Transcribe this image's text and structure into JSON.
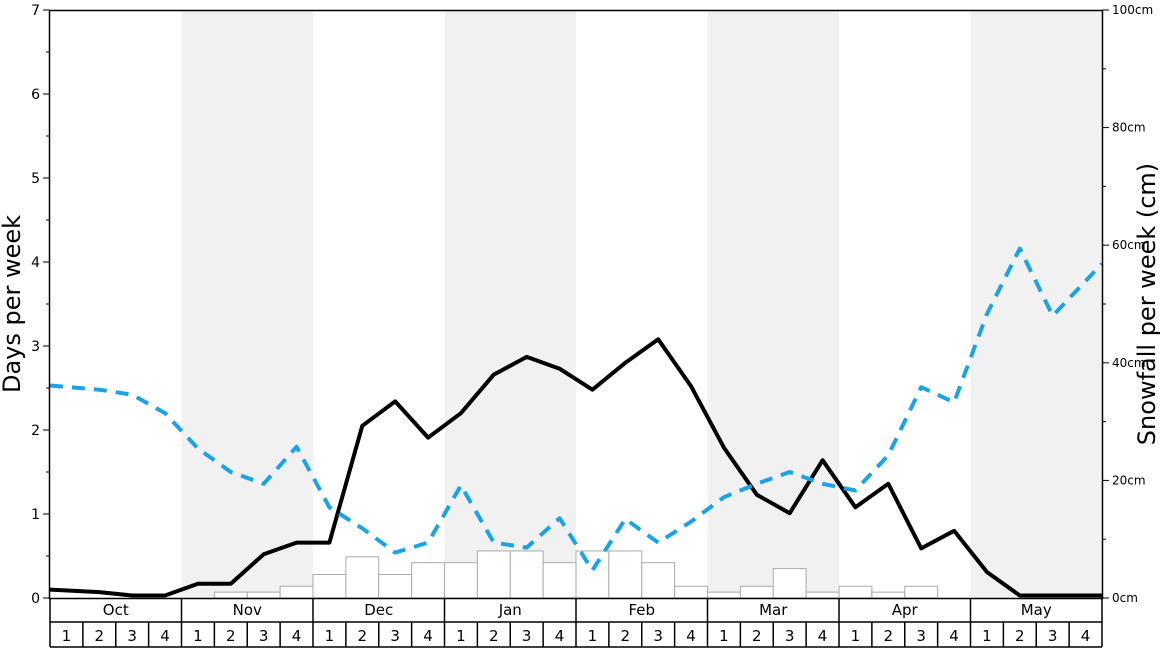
{
  "chart_data": {
    "type": "bar+line",
    "y_left_label": "Days per week",
    "y_right_label": "Snowfall per week (cm)",
    "y_left_ticks": [
      "0",
      "1",
      "2",
      "3",
      "4",
      "5",
      "6",
      "7"
    ],
    "y_right_ticks": [
      "0cm",
      "20cm",
      "40cm",
      "60cm",
      "80cm",
      "100cm"
    ],
    "y_left_range": [
      0,
      7
    ],
    "y_right_range": [
      0,
      100
    ],
    "months": [
      "Oct",
      "Nov",
      "Dec",
      "Jan",
      "Feb",
      "Mar",
      "Apr",
      "May"
    ],
    "week_labels": [
      "1",
      "2",
      "3",
      "4"
    ],
    "shaded_months": [
      "Nov",
      "Jan",
      "Mar",
      "May"
    ],
    "series": [
      {
        "style": "bars-outline",
        "axis": "right",
        "color": "#aaaaaa",
        "values": [
          0,
          0,
          0,
          0,
          0,
          1,
          1,
          2,
          4,
          7,
          4,
          6,
          6,
          8,
          8,
          6,
          8,
          8,
          6,
          2,
          1,
          2,
          5,
          1,
          2,
          1,
          2,
          0,
          0,
          0,
          0,
          0
        ]
      },
      {
        "style": "solid-line",
        "axis": "left",
        "color": "#000000",
        "values": [
          0.1,
          0.07,
          0.03,
          0.03,
          0.17,
          0.17,
          0.52,
          0.66,
          0.66,
          2.05,
          2.34,
          1.91,
          2.2,
          2.66,
          2.87,
          2.73,
          2.48,
          2.8,
          3.08,
          2.52,
          1.79,
          1.23,
          1.01,
          1.64,
          1.08,
          1.36,
          0.59,
          0.8,
          0.31,
          0.03,
          0.03,
          0.03
        ]
      },
      {
        "style": "dashed-line",
        "axis": "left",
        "color": "#1aa3e6",
        "values": [
          2.53,
          2.48,
          2.42,
          2.2,
          1.78,
          1.5,
          1.36,
          1.8,
          1.08,
          0.83,
          0.54,
          0.66,
          1.34,
          0.66,
          0.6,
          0.95,
          0.33,
          0.94,
          0.66,
          0.91,
          1.2,
          1.36,
          1.5,
          1.36,
          1.28,
          1.7,
          2.51,
          2.33,
          3.38,
          4.16,
          3.36,
          3.98
        ]
      }
    ]
  }
}
